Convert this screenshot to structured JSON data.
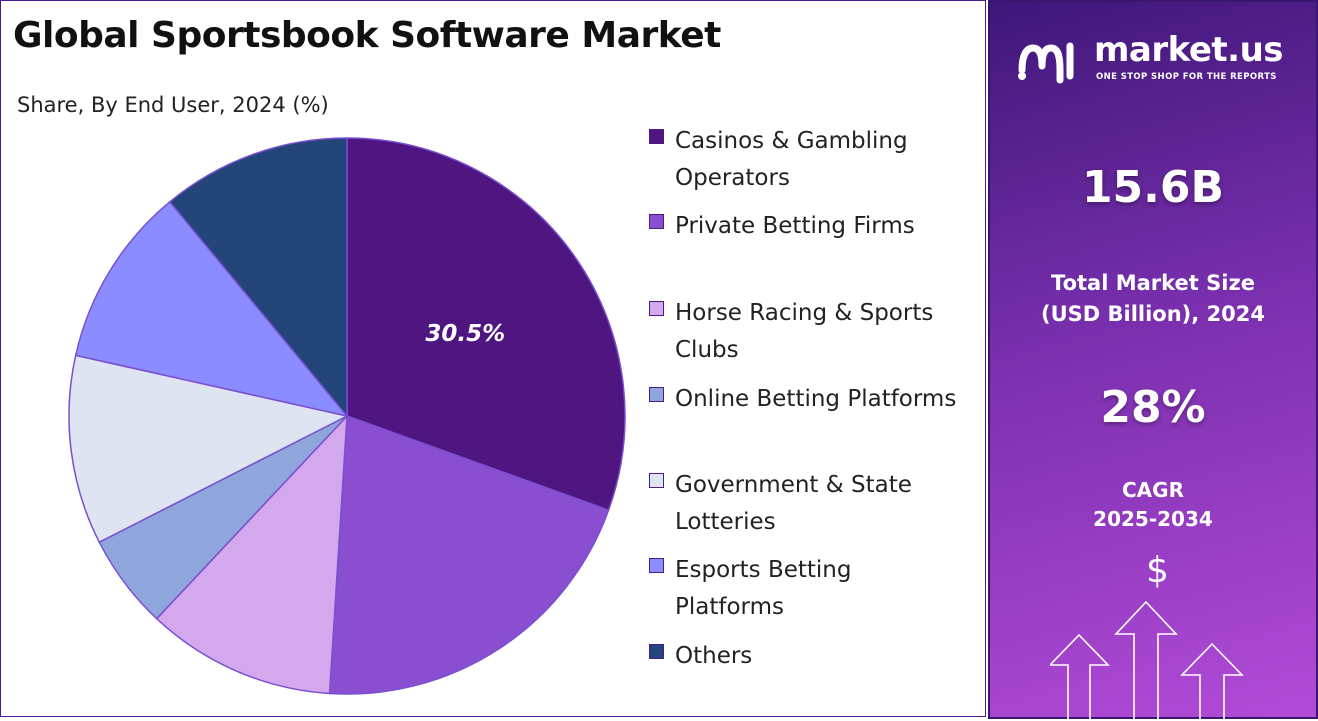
{
  "header": {
    "title": "Global Sportsbook Software Market",
    "subtitle": "Share, By End User, 2024 (%)"
  },
  "chart_data": {
    "type": "pie",
    "title": "Global Sportsbook Software Market",
    "subtitle": "Share, By End User, 2024 (%)",
    "categories": [
      "Casinos & Gambling Operators",
      "Private Betting Firms",
      "Horse Racing & Sports Clubs",
      "Online Betting Platforms",
      "Government & State Lotteries",
      "Esports Betting Platforms",
      "Others"
    ],
    "values": [
      30.5,
      20.5,
      11.0,
      5.5,
      11.0,
      10.5,
      11.0
    ],
    "colors": [
      "#4f1681",
      "#8a4fd1",
      "#d4a8ec",
      "#8ea6db",
      "#dfe4f3",
      "#8b8cff",
      "#23457a"
    ],
    "data_labels": [
      {
        "index": 0,
        "text": "30.5%"
      }
    ],
    "legend_position": "right",
    "start_angle_deg": 0,
    "direction": "clockwise"
  },
  "legend": {
    "items": [
      {
        "label": "Casinos & Gambling\nOperators",
        "color": "#4f1681"
      },
      {
        "label": "Private Betting Firms",
        "color": "#8a4fd1"
      },
      {
        "label": "Horse Racing & Sports\nClubs",
        "color": "#d4a8ec"
      },
      {
        "label": "Online Betting Platforms",
        "color": "#8ea6db"
      },
      {
        "label": "Government & State\nLotteries",
        "color": "#dfe4f3"
      },
      {
        "label": "Esports Betting\nPlatforms",
        "color": "#8b8cff"
      },
      {
        "label": "Others",
        "color": "#23457a"
      }
    ]
  },
  "sidebar": {
    "brand_name": "market.us",
    "brand_tagline": "ONE STOP SHOP FOR THE REPORTS",
    "market_size_value": "15.6B",
    "market_size_caption": "Total Market Size\n(USD Billion), 2024",
    "cagr_value": "28%",
    "cagr_caption": "CAGR\n2025-2034",
    "dollar_symbol": "$",
    "icon_names": [
      "market-us-logo-icon",
      "dollar-icon",
      "growth-arrows-icon"
    ]
  }
}
